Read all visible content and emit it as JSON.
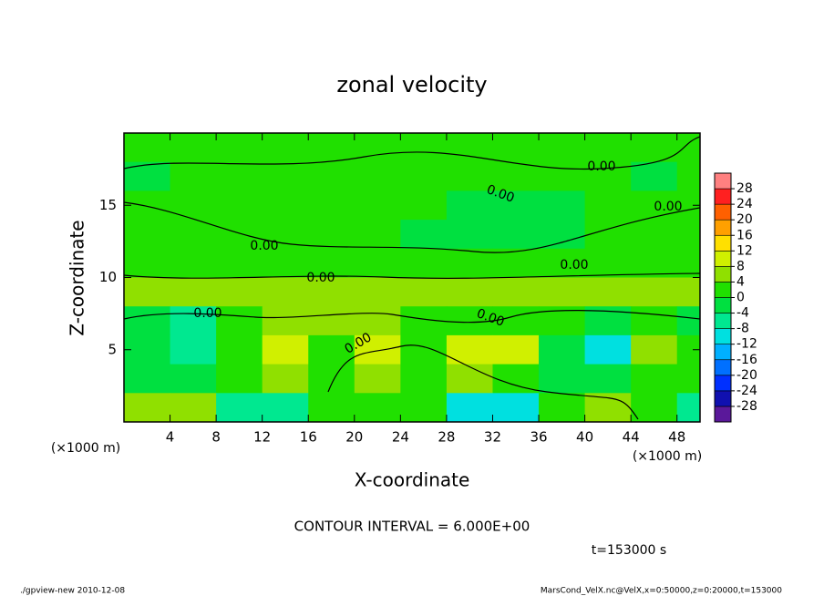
{
  "chart_data": {
    "type": "contour",
    "title": "zonal velocity",
    "x_label": "X-coordinate",
    "y_label": "Z-coordinate",
    "x_unit": "(×1000 m)",
    "y_unit": "(×1000 m)",
    "xlim": [
      0,
      50
    ],
    "xticks": [
      4,
      8,
      12,
      16,
      20,
      24,
      28,
      32,
      36,
      40,
      44,
      48
    ],
    "ylim": [
      0,
      20
    ],
    "yticks": [
      5,
      10,
      15
    ],
    "x": [
      2,
      6,
      10,
      14,
      18,
      22,
      26,
      30,
      34,
      38,
      42,
      46,
      50
    ],
    "z": [
      19,
      17,
      15,
      13,
      11,
      9,
      7,
      5,
      3,
      1
    ],
    "values": [
      [
        1,
        1,
        1,
        1,
        1,
        1,
        1,
        1,
        1,
        1,
        1,
        1,
        1
      ],
      [
        -1,
        1,
        1,
        1,
        1,
        1,
        1,
        1,
        1,
        1,
        1,
        -1,
        1
      ],
      [
        1,
        1,
        1,
        1,
        1,
        1,
        1,
        -1,
        -1,
        -1,
        1,
        1,
        1
      ],
      [
        1,
        1,
        1,
        1,
        1,
        1,
        -1,
        -1,
        -1,
        -1,
        1,
        1,
        1
      ],
      [
        2,
        2,
        2,
        2,
        2,
        2,
        2,
        1,
        1,
        1,
        1,
        2,
        2
      ],
      [
        5,
        5,
        5,
        5,
        4,
        5,
        5,
        5,
        5,
        5,
        5,
        5,
        5
      ],
      [
        -3,
        -6,
        3,
        4,
        4,
        4,
        3,
        2,
        3,
        3,
        -3,
        3,
        -2
      ],
      [
        -4,
        -8,
        2,
        8,
        2,
        8,
        2,
        9,
        8,
        -2,
        -9,
        6,
        2
      ],
      [
        -4,
        -4,
        0,
        4,
        0,
        6,
        0,
        4,
        2,
        -2,
        -4,
        0,
        0
      ],
      [
        4,
        6,
        -6,
        -8,
        0,
        2,
        0,
        -10,
        -10,
        2,
        6,
        2,
        -6
      ]
    ],
    "colorbar_ticks": [
      28,
      24,
      20,
      16,
      12,
      8,
      4,
      0,
      -4,
      -8,
      -12,
      -16,
      -20,
      -24,
      -28
    ],
    "colors": [
      "#5a189a",
      "#1010b0",
      "#0030ff",
      "#0070ff",
      "#00b0ff",
      "#00e0e0",
      "#00e890",
      "#00e040",
      "#20e000",
      "#90e000",
      "#d0f000",
      "#ffe000",
      "#ffa000",
      "#ff6000",
      "#ff2020",
      "#ff8080"
    ],
    "contour_labels": [
      "0.00",
      "0.00",
      "0.00",
      "0.00",
      "0.00",
      "0.00",
      "0.00",
      "0.00",
      "0.00"
    ],
    "contour_interval": "CONTOUR INTERVAL = 6.000E+00",
    "time": "t=153000 s",
    "footer_left": "./gpview-new  2010-12-08",
    "footer_right": "MarsCond_VelX.nc@VelX,x=0:50000,z=0:20000,t=153000"
  }
}
